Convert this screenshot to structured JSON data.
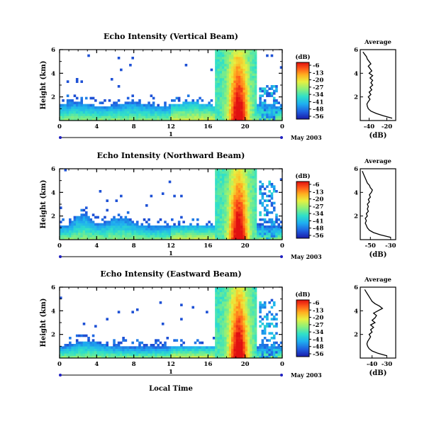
{
  "chart_data": [
    {
      "type": "heatmap",
      "title": "Echo Intensity (Vertical Beam)",
      "ylabel": "Height (km)",
      "xlabel": "",
      "xticks": [
        "0",
        "4",
        "8",
        "12",
        "16",
        "20",
        "0"
      ],
      "yticks": [
        "2",
        "4",
        "6"
      ],
      "xlim": [
        0,
        24
      ],
      "ylim": [
        0,
        6
      ],
      "day_label": "1",
      "date_label": "May 2003",
      "colorbar": {
        "unit": "(dB)",
        "ticks": [
          "-6",
          "-13",
          "-20",
          "-27",
          "-34",
          "-41",
          "-48",
          "-56"
        ]
      },
      "profile": {
        "title": "Average",
        "xlabel": "(dB)",
        "xticks": [
          "-40",
          "-20"
        ],
        "xlim": [
          -50,
          -10
        ],
        "yticks": [
          "2",
          "4",
          "6"
        ],
        "height_km": [
          0.2,
          0.4,
          0.6,
          0.8,
          1.0,
          1.2,
          1.4,
          1.6,
          1.8,
          2.0,
          2.2,
          2.4,
          2.6,
          2.8,
          3.0,
          3.2,
          3.4,
          3.6,
          3.8,
          4.0,
          4.2,
          4.4,
          4.6,
          4.8,
          5.0,
          5.2,
          5.4,
          5.6,
          5.8
        ],
        "value_db": [
          -14,
          -24,
          -32,
          -38,
          -41,
          -42,
          -42.5,
          -41,
          -39,
          -41,
          -38,
          -40,
          -37,
          -39,
          -36,
          -38,
          -36,
          -39,
          -36,
          -40,
          -37,
          -39,
          -41,
          -38,
          -40,
          -42,
          -43,
          -45,
          -47
        ]
      }
    },
    {
      "type": "heatmap",
      "title": "Echo Intensity (Northward Beam)",
      "ylabel": "Height (km)",
      "xlabel": "",
      "xticks": [
        "0",
        "4",
        "8",
        "12",
        "16",
        "20",
        "0"
      ],
      "yticks": [
        "2",
        "4",
        "6"
      ],
      "xlim": [
        0,
        24
      ],
      "ylim": [
        0,
        6
      ],
      "day_label": "1",
      "date_label": "May 2003",
      "colorbar": {
        "unit": "(dB)",
        "ticks": [
          "-6",
          "-13",
          "-20",
          "-27",
          "-34",
          "-41",
          "-48",
          "-56"
        ]
      },
      "profile": {
        "title": "Average",
        "xlabel": "(dB)",
        "xticks": [
          "-50",
          "-30"
        ],
        "xlim": [
          -60,
          -25
        ],
        "yticks": [
          "2",
          "4",
          "6"
        ],
        "height_km": [
          0.2,
          0.4,
          0.6,
          0.8,
          1.0,
          1.2,
          1.4,
          1.6,
          1.8,
          2.0,
          2.2,
          2.4,
          2.6,
          2.8,
          3.0,
          3.2,
          3.4,
          3.6,
          3.8,
          4.0,
          4.2,
          4.4,
          4.6,
          4.8,
          5.0,
          5.2,
          5.4,
          5.6,
          5.8
        ],
        "value_db": [
          -30,
          -40,
          -47,
          -51,
          -53,
          -54,
          -55,
          -54,
          -55,
          -53,
          -54,
          -52,
          -53,
          -52,
          -53,
          -51,
          -52,
          -50,
          -51,
          -49,
          -48,
          -50,
          -51,
          -53,
          -54,
          -55,
          -56,
          -57,
          -58
        ]
      }
    },
    {
      "type": "heatmap",
      "title": "Echo Intensity (Eastward Beam)",
      "ylabel": "Height (km)",
      "xlabel": "Local Time",
      "xticks": [
        "0",
        "4",
        "8",
        "12",
        "16",
        "20",
        "0"
      ],
      "yticks": [
        "2",
        "4",
        "6"
      ],
      "xlim": [
        0,
        24
      ],
      "ylim": [
        0,
        6
      ],
      "day_label": "1",
      "date_label": "May 2003",
      "colorbar": {
        "unit": "(dB)",
        "ticks": [
          "-6",
          "-13",
          "-20",
          "-27",
          "-34",
          "-41",
          "-48",
          "-56"
        ]
      },
      "profile": {
        "title": "Average",
        "xlabel": "(dB)",
        "xticks": [
          "-40",
          "-30"
        ],
        "xlim": [
          -48,
          -24
        ],
        "yticks": [
          "2",
          "4",
          "6"
        ],
        "height_km": [
          0.2,
          0.4,
          0.6,
          0.8,
          1.0,
          1.2,
          1.4,
          1.6,
          1.8,
          2.0,
          2.2,
          2.4,
          2.6,
          2.8,
          3.0,
          3.2,
          3.4,
          3.6,
          3.8,
          4.0,
          4.2,
          4.4,
          4.6,
          4.8,
          5.0,
          5.2,
          5.4,
          5.6,
          5.8
        ],
        "value_db": [
          -30,
          -36,
          -40,
          -42,
          -43,
          -43.5,
          -43,
          -42,
          -41,
          -42,
          -40,
          -41,
          -39,
          -41,
          -38,
          -40,
          -38,
          -37,
          -39,
          -36,
          -33,
          -35,
          -38,
          -40,
          -41,
          -42,
          -43,
          -44,
          -45
        ]
      }
    }
  ],
  "colors": {
    "colormap": [
      "#1a1aa8",
      "#1f5fe0",
      "#1fb0f0",
      "#30e0c8",
      "#8cf07a",
      "#e8f040",
      "#ffb020",
      "#ff5a18",
      "#e01010"
    ]
  }
}
